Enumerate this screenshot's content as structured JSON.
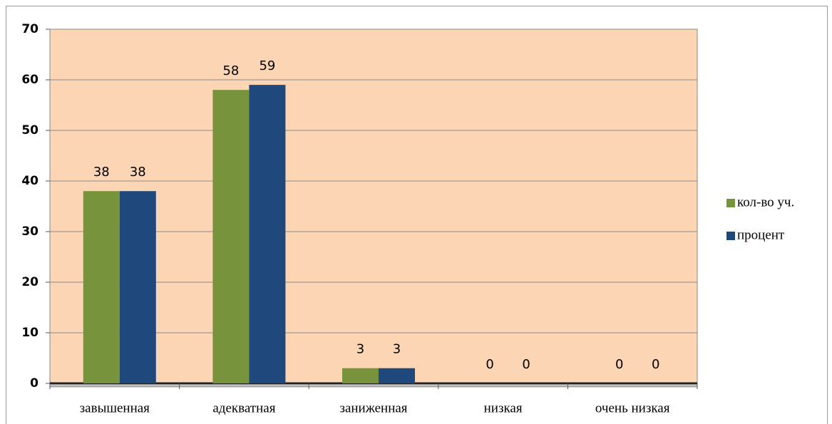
{
  "chart_data": {
    "type": "bar",
    "categories": [
      "завышенная",
      "адекватная",
      "заниженная",
      "низкая",
      "очень низкая"
    ],
    "series": [
      {
        "name": "кол-во уч.",
        "color": "#77933c",
        "values": [
          38,
          58,
          3,
          0,
          0
        ]
      },
      {
        "name": "процент",
        "color": "#1f497d",
        "values": [
          38,
          59,
          3,
          0,
          0
        ]
      }
    ],
    "ylim": [
      0,
      70
    ],
    "yticks": [
      0,
      10,
      20,
      30,
      40,
      50,
      60,
      70
    ],
    "grid": true,
    "legend": "right",
    "plot_background": "#fcd5b5"
  }
}
